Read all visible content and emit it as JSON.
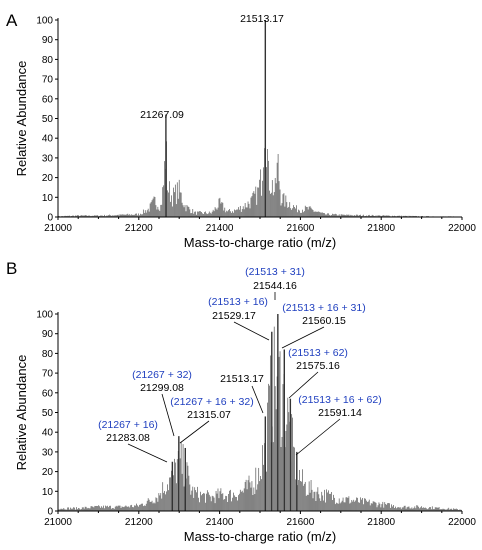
{
  "chart_data": [
    {
      "panel": "A",
      "type": "bar",
      "xlabel": "Mass-to-charge ratio (m/z)",
      "ylabel": "Relative Abundance",
      "xlim": [
        21000,
        22000
      ],
      "ylim": [
        0,
        100
      ],
      "x_ticks": [
        "21000",
        "21200",
        "21400",
        "21600",
        "21800",
        "22000"
      ],
      "y_ticks": [
        "0",
        "10",
        "20",
        "30",
        "40",
        "50",
        "60",
        "70",
        "80",
        "90",
        "100"
      ],
      "peaks": [
        {
          "x": 21267.09,
          "y": 52,
          "label": "21267.09"
        },
        {
          "x": 21513.17,
          "y": 100,
          "label": "21513.17"
        }
      ],
      "profile": [
        {
          "x": 21000,
          "y": 0.5
        },
        {
          "x": 21050,
          "y": 1
        },
        {
          "x": 21100,
          "y": 1
        },
        {
          "x": 21150,
          "y": 1.5
        },
        {
          "x": 21200,
          "y": 2
        },
        {
          "x": 21225,
          "y": 6
        },
        {
          "x": 21240,
          "y": 12
        },
        {
          "x": 21255,
          "y": 8
        },
        {
          "x": 21262,
          "y": 25
        },
        {
          "x": 21267.09,
          "y": 52
        },
        {
          "x": 21272,
          "y": 22
        },
        {
          "x": 21283,
          "y": 15
        },
        {
          "x": 21299,
          "y": 20
        },
        {
          "x": 21315,
          "y": 8
        },
        {
          "x": 21340,
          "y": 3
        },
        {
          "x": 21380,
          "y": 3
        },
        {
          "x": 21400,
          "y": 10
        },
        {
          "x": 21420,
          "y": 4
        },
        {
          "x": 21440,
          "y": 5
        },
        {
          "x": 21460,
          "y": 8
        },
        {
          "x": 21480,
          "y": 12
        },
        {
          "x": 21495,
          "y": 18
        },
        {
          "x": 21505,
          "y": 30
        },
        {
          "x": 21513.17,
          "y": 100
        },
        {
          "x": 21520,
          "y": 30
        },
        {
          "x": 21529,
          "y": 25
        },
        {
          "x": 21537,
          "y": 18
        },
        {
          "x": 21544,
          "y": 40
        },
        {
          "x": 21552,
          "y": 15
        },
        {
          "x": 21560,
          "y": 12
        },
        {
          "x": 21575,
          "y": 10
        },
        {
          "x": 21590,
          "y": 6
        },
        {
          "x": 21620,
          "y": 6
        },
        {
          "x": 21660,
          "y": 2
        },
        {
          "x": 21700,
          "y": 1.5
        },
        {
          "x": 21800,
          "y": 1
        },
        {
          "x": 21900,
          "y": 0.5
        },
        {
          "x": 22000,
          "y": 0.3
        }
      ]
    },
    {
      "panel": "B",
      "type": "bar",
      "xlabel": "Mass-to-charge ratio (m/z)",
      "ylabel": "Relative Abundance",
      "xlim": [
        21000,
        22000
      ],
      "ylim": [
        0,
        100
      ],
      "x_ticks": [
        "21000",
        "21200",
        "21400",
        "21600",
        "21800",
        "22000"
      ],
      "y_ticks": [
        "0",
        "10",
        "20",
        "30",
        "40",
        "50",
        "60",
        "70",
        "80",
        "90",
        "100"
      ],
      "peaks": [
        {
          "x": 21283.08,
          "y": 25,
          "label": "21283.08",
          "assignment": "(21267 + 16)"
        },
        {
          "x": 21299.08,
          "y": 38,
          "label": "21299.08",
          "assignment": "(21267 + 32)"
        },
        {
          "x": 21315.07,
          "y": 32,
          "label": "21315.07",
          "assignment": "(21267 + 16 + 32)"
        },
        {
          "x": 21513.17,
          "y": 48,
          "label": "21513.17",
          "assignment": ""
        },
        {
          "x": 21529.17,
          "y": 91,
          "label": "21529.17",
          "assignment": "(21513 + 16)"
        },
        {
          "x": 21544.16,
          "y": 100,
          "label": "21544.16",
          "assignment": "(21513 + 31)"
        },
        {
          "x": 21560.15,
          "y": 82,
          "label": "21560.15",
          "assignment": "(21513 + 16 + 31)"
        },
        {
          "x": 21575.16,
          "y": 57,
          "label": "21575.16",
          "assignment": "(21513 + 62)"
        },
        {
          "x": 21591.14,
          "y": 30,
          "label": "21591.14",
          "assignment": "(21513 + 16 + 62)"
        }
      ],
      "profile": [
        {
          "x": 21000,
          "y": 2
        },
        {
          "x": 21050,
          "y": 2
        },
        {
          "x": 21100,
          "y": 3
        },
        {
          "x": 21150,
          "y": 3
        },
        {
          "x": 21200,
          "y": 4
        },
        {
          "x": 21230,
          "y": 8
        },
        {
          "x": 21250,
          "y": 12
        },
        {
          "x": 21267,
          "y": 20
        },
        {
          "x": 21283.08,
          "y": 25
        },
        {
          "x": 21299.08,
          "y": 38
        },
        {
          "x": 21315.07,
          "y": 32
        },
        {
          "x": 21330,
          "y": 15
        },
        {
          "x": 21350,
          "y": 12
        },
        {
          "x": 21380,
          "y": 10
        },
        {
          "x": 21400,
          "y": 12
        },
        {
          "x": 21430,
          "y": 12
        },
        {
          "x": 21460,
          "y": 15
        },
        {
          "x": 21480,
          "y": 20
        },
        {
          "x": 21497,
          "y": 28
        },
        {
          "x": 21513.17,
          "y": 48
        },
        {
          "x": 21529.17,
          "y": 91
        },
        {
          "x": 21544.16,
          "y": 100
        },
        {
          "x": 21560.15,
          "y": 82
        },
        {
          "x": 21575.16,
          "y": 57
        },
        {
          "x": 21591.14,
          "y": 30
        },
        {
          "x": 21607,
          "y": 20
        },
        {
          "x": 21630,
          "y": 15
        },
        {
          "x": 21660,
          "y": 12
        },
        {
          "x": 21700,
          "y": 9
        },
        {
          "x": 21750,
          "y": 7
        },
        {
          "x": 21800,
          "y": 5
        },
        {
          "x": 21850,
          "y": 3
        },
        {
          "x": 21900,
          "y": 3
        },
        {
          "x": 21950,
          "y": 2
        },
        {
          "x": 22000,
          "y": 1
        }
      ]
    }
  ]
}
